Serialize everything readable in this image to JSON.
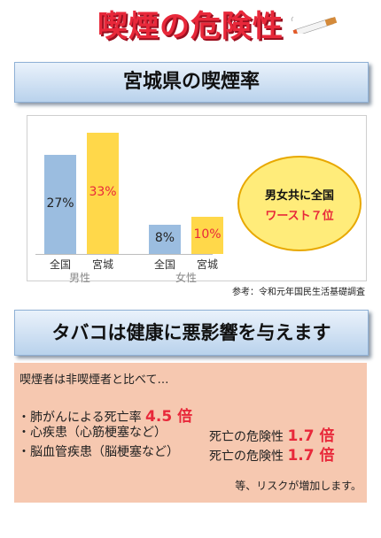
{
  "title": "喫煙の危険性",
  "banner1": "宮城県の喫煙率",
  "banner2": "タバコは健康に悪影響を与えます",
  "chart_data": {
    "type": "bar",
    "groups": [
      "男性",
      "女性"
    ],
    "categories": [
      "全国",
      "宮城",
      "全国",
      "宮城"
    ],
    "values": [
      27,
      33,
      8,
      10
    ],
    "labels": [
      "27%",
      "33%",
      "8%",
      "10%"
    ],
    "colors": [
      "#9bbde0",
      "#ffd84a",
      "#9bbde0",
      "#ffd84a"
    ],
    "ylim": [
      0,
      36
    ]
  },
  "callout": {
    "line1": "男女共に全国",
    "line2": "ワースト７位"
  },
  "source": "参考：令和元年国民生活基礎調査",
  "intro": "喫煙者は非喫煙者と比べて…",
  "risks": {
    "r1_text": "・肺がんによる死亡率 ",
    "r1_val": "4.5 倍",
    "r2_text": "・心疾患（心筋梗塞など）",
    "r2_mid": "死亡の危険性 ",
    "r2_val": "1.7 倍",
    "r3_text": "・脳血管疾患（脳梗塞など）",
    "r3_mid": "死亡の危険性 ",
    "r3_val": "1.7 倍"
  },
  "footer": "等、リスクが増加します。"
}
